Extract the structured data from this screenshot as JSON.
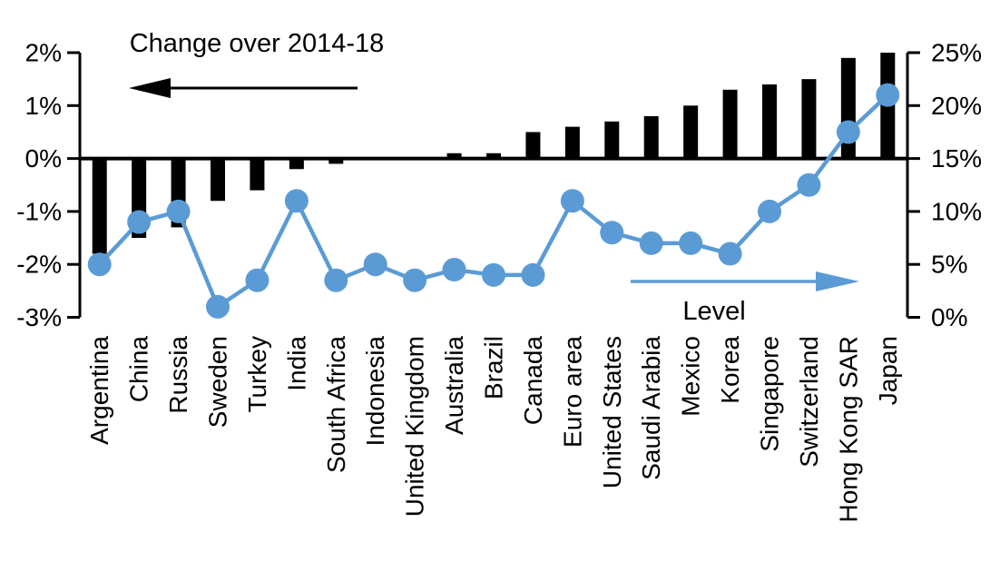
{
  "chart_data": {
    "type": "bar",
    "subtype": "dual-axis-bar-and-line",
    "title": "",
    "categories": [
      "Argentina",
      "China",
      "Russia",
      "Sweden",
      "Turkey",
      "India",
      "South Africa",
      "Indonesia",
      "United Kingdom",
      "Australia",
      "Brazil",
      "Canada",
      "Euro area",
      "United States",
      "Saudi Arabia",
      "Mexico",
      "Korea",
      "Singapore",
      "Switzerland",
      "Hong Kong SAR",
      "Japan"
    ],
    "series": [
      {
        "name": "Change over 2014-18",
        "type": "bar",
        "axis": "left",
        "color": "#000000",
        "values": [
          -1.8,
          -1.5,
          -1.3,
          -0.8,
          -0.6,
          -0.2,
          -0.1,
          0,
          0,
          0.1,
          0.1,
          0.5,
          0.6,
          0.7,
          0.8,
          1.0,
          1.3,
          1.4,
          1.5,
          1.9,
          2.0
        ]
      },
      {
        "name": "Level",
        "type": "line",
        "axis": "right",
        "color": "#5B9BD5",
        "values": [
          5,
          9,
          10,
          1,
          3.5,
          11,
          3.5,
          5,
          3.5,
          4.5,
          4,
          4,
          11,
          8,
          7,
          7,
          6,
          10,
          12.5,
          17.5,
          21
        ]
      }
    ],
    "left_axis": {
      "ticks": [
        "2%",
        "1%",
        "0%",
        "-1%",
        "-2%",
        "-3%"
      ],
      "tick_values": [
        2,
        1,
        0,
        -1,
        -2,
        -3
      ],
      "min": -3,
      "max": 2
    },
    "right_axis": {
      "ticks": [
        "25%",
        "20%",
        "15%",
        "10%",
        "5%",
        "0%"
      ],
      "tick_values": [
        25,
        20,
        15,
        10,
        5,
        0
      ],
      "min": 0,
      "max": 25
    },
    "annotations": {
      "bar_series_label": "Change over 2014-18",
      "bar_series_arrow_direction": "left",
      "line_series_label": "Level",
      "line_series_arrow_direction": "right"
    },
    "grid": false,
    "legend_position": "none"
  },
  "colors": {
    "bar": "#000000",
    "line": "#5B9BD5",
    "background": "#ffffff",
    "text": "#000000"
  }
}
